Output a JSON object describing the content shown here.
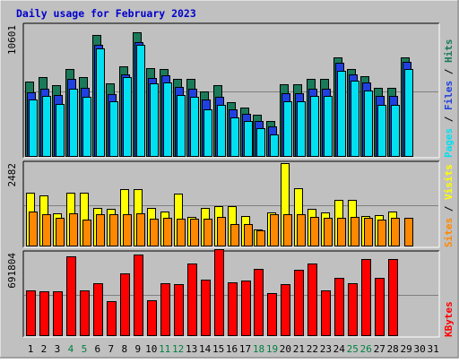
{
  "chart_data": {
    "type": "bar",
    "title": "Daily usage for February 2023",
    "x": [
      "1",
      "2",
      "3",
      "4",
      "5",
      "6",
      "7",
      "8",
      "9",
      "10",
      "11",
      "12",
      "13",
      "14",
      "15",
      "16",
      "17",
      "18",
      "19",
      "20",
      "21",
      "22",
      "23",
      "24",
      "25",
      "26",
      "27",
      "28",
      "29",
      "30",
      "31"
    ],
    "weekend_days": [
      "4",
      "5",
      "11",
      "12",
      "18",
      "19",
      "25",
      "26"
    ],
    "panels": [
      {
        "id": "pages-files-hits",
        "ymax_label": "10601",
        "ylim": [
          0,
          10601
        ],
        "axis_labels": [
          "Pages",
          "Files",
          "Hits"
        ],
        "series": [
          {
            "name": "Hits",
            "color": "#1a7a5a",
            "values": [
              6050,
              6450,
              5800,
              7100,
              6400,
              9800,
              5900,
              7250,
              10000,
              7150,
              7100,
              6300,
              6250,
              5300,
              5750,
              4400,
              3950,
              3400,
              2900,
              5850,
              5850,
              6250,
              6250,
              8000,
              7100,
              6500,
              5550,
              5550,
              8000,
              0,
              0
            ]
          },
          {
            "name": "Files",
            "color": "#2040e0",
            "values": [
              5200,
              5500,
              4950,
              6250,
              5550,
              9050,
              5050,
              6650,
              9200,
              6350,
              6550,
              5600,
              5500,
              4600,
              4850,
              3850,
              3450,
              2900,
              2450,
              5100,
              5100,
              5500,
              5500,
              7600,
              6650,
              5950,
              4900,
              4900,
              7650,
              0,
              0
            ]
          },
          {
            "name": "Pages",
            "color": "#00e0f0",
            "values": [
              4650,
              4900,
              4250,
              5500,
              4850,
              8700,
              4450,
              6400,
              9000,
              5900,
              5950,
              4950,
              4850,
              3800,
              4150,
              3200,
              2850,
              2300,
              1800,
              4500,
              4450,
              4900,
              4900,
              6900,
              6150,
              5350,
              4150,
              4150,
              7100,
              0,
              0
            ]
          }
        ]
      },
      {
        "id": "visits-sites",
        "ymax_label": "2482",
        "ylim": [
          0,
          2482
        ],
        "axis_labels": [
          "Sites",
          "Visits"
        ],
        "series": [
          {
            "name": "Visits",
            "color": "#ffff00",
            "values": [
              1590,
              1530,
              1000,
              1600,
              1600,
              1150,
              1120,
              1700,
              1700,
              1160,
              1050,
              1570,
              880,
              1140,
              1200,
              1200,
              920,
              520,
              1020,
              2482,
              1730,
              1120,
              1020,
              1400,
              1400,
              900,
              930,
              1030,
              0,
              0,
              0
            ]
          },
          {
            "name": "Sites",
            "color": "#ff8800",
            "values": [
              1040,
              960,
              860,
              1000,
              800,
              960,
              960,
              960,
              980,
              830,
              860,
              820,
              840,
              840,
              880,
              670,
              660,
              470,
              970,
              970,
              970,
              880,
              860,
              860,
              880,
              850,
              800,
              860,
              860,
              0,
              0
            ]
          }
        ]
      },
      {
        "id": "kbytes",
        "ymax_label": "691804",
        "ylim": [
          0,
          691804
        ],
        "axis_labels": [
          "KBytes"
        ],
        "series": [
          {
            "name": "KBytes",
            "color": "#ff0000",
            "values": [
              380000,
              370000,
              370000,
              660000,
              380000,
              440000,
              290000,
              520000,
              680000,
              300000,
              440000,
              430000,
              600000,
              470000,
              720000,
              450000,
              460000,
              560000,
              360000,
              430000,
              550000,
              600000,
              380000,
              480000,
              440000,
              640000,
              480000,
              640000,
              0,
              0,
              0
            ]
          }
        ]
      }
    ]
  },
  "colors": {
    "background": "#c0c0c0",
    "title": "#0000cc",
    "weekend_label": "#008040",
    "weekday_label": "#000080",
    "label_black": "#000000"
  }
}
